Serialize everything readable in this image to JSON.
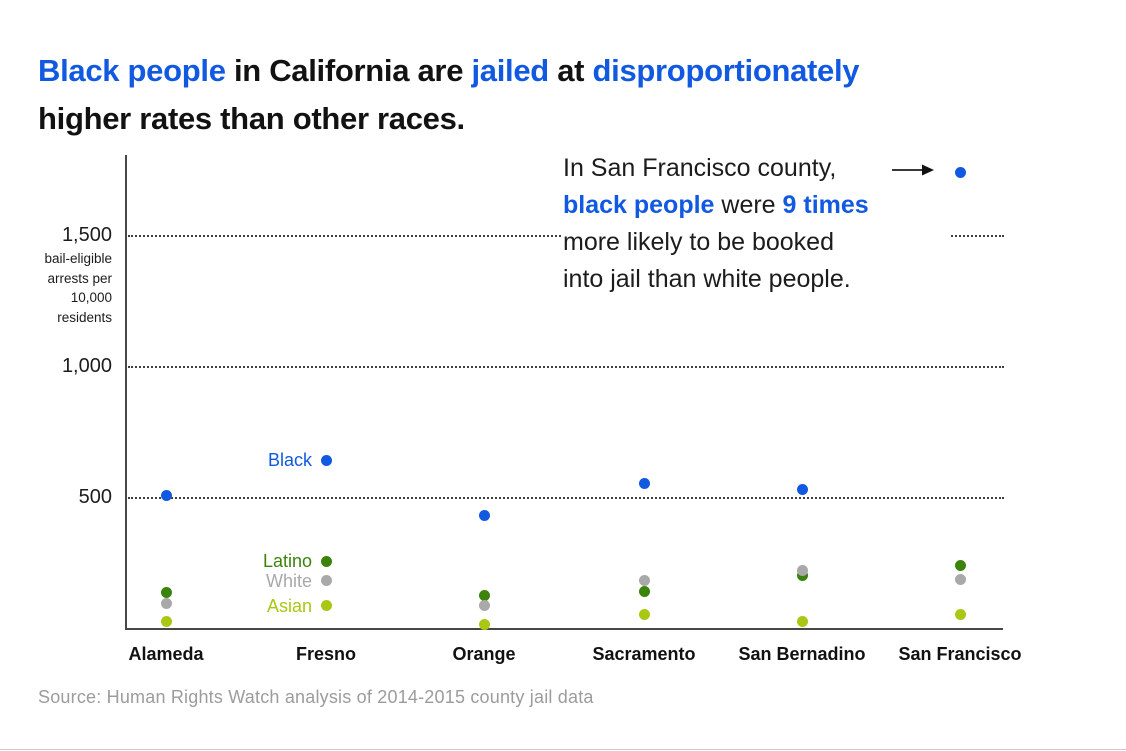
{
  "colors": {
    "accent_blue": "#1159e0",
    "latino_green": "#3c830b",
    "white_gray": "#a9a9a9",
    "asian_yellow_green": "#a9c813",
    "text_black": "#121212",
    "source_gray": "#9c9c9c"
  },
  "title": {
    "line1_segments": [
      {
        "text": "Black people",
        "accent": true
      },
      {
        "text": " in California are ",
        "accent": false
      },
      {
        "text": "jailed",
        "accent": true
      },
      {
        "text": " at ",
        "accent": false
      },
      {
        "text": "disproportionately",
        "accent": true
      }
    ],
    "line2_segments": [
      {
        "text": "higher rates than other races.",
        "accent": false
      }
    ]
  },
  "annotation": {
    "lines": [
      [
        {
          "text": "In San Francisco county,",
          "accent": false
        }
      ],
      [
        {
          "text": "black people",
          "accent": true
        },
        {
          "text": " were ",
          "accent": false
        },
        {
          "text": "9 times",
          "accent": true
        }
      ],
      [
        {
          "text": "more likely to be booked",
          "accent": false
        }
      ],
      [
        {
          "text": "into jail than white people.",
          "accent": false
        }
      ]
    ],
    "arrow": "right-arrow pointing to San Francisco Black data point"
  },
  "y_axis": {
    "ticks": [
      {
        "label": "1,500",
        "value": 1500
      },
      {
        "label": "1,000",
        "value": 1000
      },
      {
        "label": "500",
        "value": 500
      }
    ],
    "unit_label_lines": [
      "bail-eligible",
      "arrests per",
      "10,000",
      "residents"
    ]
  },
  "chart_data": {
    "type": "scatter",
    "categories": [
      "Alameda",
      "Fresno",
      "Orange",
      "Sacramento",
      "San Bernadino",
      "San Francisco"
    ],
    "series": [
      {
        "name": "Black",
        "color_key": "accent_blue",
        "values": [
          505,
          640,
          430,
          550,
          530,
          1740
        ]
      },
      {
        "name": "Latino",
        "color_key": "latino_green",
        "values": [
          135,
          255,
          125,
          140,
          200,
          240
        ]
      },
      {
        "name": "White",
        "color_key": "white_gray",
        "values": [
          95,
          180,
          85,
          180,
          220,
          185
        ]
      },
      {
        "name": "Asian",
        "color_key": "asian_yellow_green",
        "values": [
          25,
          85,
          15,
          50,
          25,
          50
        ]
      }
    ],
    "title": "Black people in California are jailed at disproportionately higher rates than other races.",
    "xlabel": "",
    "ylabel": "bail-eligible arrests per 10,000 residents",
    "ylim": [
      0,
      1800
    ],
    "yticks": [
      500,
      1000,
      1500
    ],
    "grid": "horizontal dotted",
    "legend_position": "inline series labels beside Fresno column",
    "annotation_text": "In San Francisco county, black people were 9 times more likely to be booked into jail than white people."
  },
  "source": {
    "text": "Source: Human Rights Watch analysis of 2014-2015 county jail data"
  }
}
